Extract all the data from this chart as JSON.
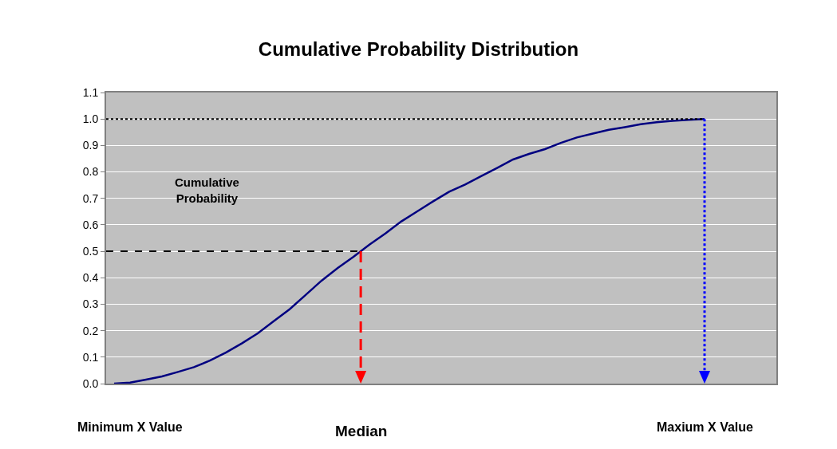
{
  "chart_data": {
    "type": "line",
    "title": "Cumulative Probability Distribution",
    "ylabel": "Cumulative Probability",
    "categories": [
      null,
      null,
      null,
      null,
      null,
      null,
      null,
      null,
      null,
      null,
      null,
      null,
      null,
      null,
      null,
      null,
      null,
      null,
      null,
      null,
      null,
      null,
      null,
      null,
      null,
      null,
      null,
      null,
      null,
      null,
      null,
      null,
      null,
      null,
      null,
      null,
      null,
      null,
      null,
      null,
      null,
      null
    ],
    "series": [
      {
        "color": "#000080",
        "values": [
          0.0,
          0.004,
          0.015,
          0.027,
          0.044,
          0.062,
          0.087,
          0.117,
          0.152,
          0.19,
          0.236,
          0.281,
          0.335,
          0.389,
          0.436,
          0.479,
          0.525,
          0.567,
          0.613,
          0.651,
          0.689,
          0.725,
          0.752,
          0.784,
          0.815,
          0.847,
          0.868,
          0.886,
          0.91,
          0.93,
          0.945,
          0.959,
          0.969,
          0.98,
          0.988,
          0.993,
          0.997,
          1.0,
          null,
          null,
          null,
          null
        ]
      }
    ],
    "ylim": [
      0,
      1.1
    ],
    "yticks": [
      {
        "value": 0,
        "label": "0.0"
      },
      0.1,
      0.2,
      0.3,
      0.4,
      0.5,
      0.6,
      0.7,
      0.8,
      0.9,
      {
        "value": 1,
        "label": "1.0"
      },
      1.1
    ],
    "grid": "y",
    "tick_labels": "y",
    "marker": "none",
    "line_style": "solid",
    "ref_lines": [
      {
        "axis": "y",
        "value": 0.5,
        "color": "#000000",
        "line_style": "dashed"
      },
      {
        "axis": "y",
        "value": 1.0,
        "color": "#000000",
        "line_style": "dotted"
      }
    ],
    "annotations": [
      "Minimum X Value",
      "Median",
      "Maxium X Value"
    ]
  }
}
